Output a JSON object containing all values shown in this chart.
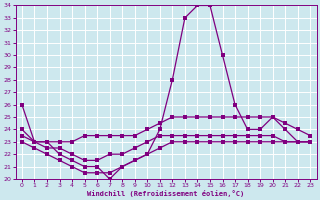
{
  "xlabel": "Windchill (Refroidissement éolien,°C)",
  "background_color": "#cde8ee",
  "grid_color": "#b0d8e0",
  "line_color": "#800080",
  "xlim": [
    -0.5,
    23.5
  ],
  "ylim": [
    20,
    34
  ],
  "xticks": [
    0,
    1,
    2,
    3,
    4,
    5,
    6,
    7,
    8,
    9,
    10,
    11,
    12,
    13,
    14,
    15,
    16,
    17,
    18,
    19,
    20,
    21,
    22,
    23
  ],
  "yticks": [
    20,
    21,
    22,
    23,
    24,
    25,
    26,
    27,
    28,
    29,
    30,
    31,
    32,
    33,
    34
  ],
  "main_line": [
    26,
    23,
    23,
    22,
    21.5,
    21,
    21,
    20,
    21,
    21.5,
    22,
    24,
    28,
    33,
    34,
    34,
    30,
    26,
    24,
    24,
    25,
    24,
    23,
    23
  ],
  "line2": [
    24,
    23,
    23,
    23,
    23,
    23.5,
    23.5,
    23.5,
    23.5,
    23.5,
    24,
    24.5,
    25,
    25,
    25,
    25,
    25,
    25,
    25,
    25,
    25,
    24.5,
    24,
    23.5
  ],
  "line3": [
    23.5,
    23,
    22.5,
    22.5,
    22,
    21.5,
    21.5,
    22,
    22,
    22.5,
    23,
    23.5,
    23.5,
    23.5,
    23.5,
    23.5,
    23.5,
    23.5,
    23.5,
    23.5,
    23.5,
    23,
    23,
    23
  ],
  "line4": [
    23,
    22.5,
    22,
    21.5,
    21,
    20.5,
    20.5,
    20.5,
    21,
    21.5,
    22,
    22.5,
    23,
    23,
    23,
    23,
    23,
    23,
    23,
    23,
    23,
    23,
    23,
    23
  ],
  "marker_size": 2.5
}
